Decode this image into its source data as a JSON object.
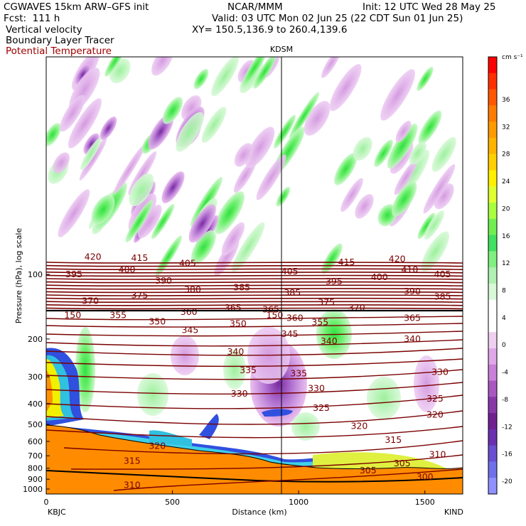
{
  "header": {
    "title": "CGWAVES 15km ARW–GFS init",
    "center": "NCAR/MMM",
    "init": "Init: 12 UTC Wed 28 May 25",
    "fcst": "Fcst:  111 h",
    "valid": "Valid: 03 UTC Mon 02 Jun 25 (22 CDT Sun 01 Jun 25)",
    "field1": "Vertical velocity",
    "field2": "Boundary Layer Tracer",
    "field3": "Potential Temperature",
    "xy": "XY= 150.5,136.9 to 260.4,139.6"
  },
  "colors": {
    "theta": "#7a0000",
    "terrain": "#ff8c00",
    "header_red": "#a00000"
  },
  "chart_data": {
    "type": "heatmap",
    "xlabel": "Distance (km)",
    "ylabel": "Pressure (hPa), log scale",
    "xlim": [
      0,
      1650
    ],
    "ylim": [
      1100,
      10
    ],
    "x_ticks": [
      0,
      500,
      1000,
      1500
    ],
    "y_ticks": [
      100,
      200,
      300,
      400,
      500,
      600,
      700,
      800,
      900,
      1000
    ],
    "x_end_labels": {
      "left": "KBJC",
      "right": "KIND"
    },
    "marker": {
      "label": "KDSM",
      "x": 935
    },
    "colorbar": {
      "unit": "cm s⁻¹",
      "labels": [
        36,
        32,
        28,
        24,
        20,
        16,
        12,
        8,
        4,
        0,
        -4,
        -8,
        -12,
        -16,
        -20
      ],
      "colors": [
        "#ff0000",
        "#ff3000",
        "#ff5800",
        "#ff7c00",
        "#ff9a00",
        "#ffb400",
        "#ffd000",
        "#fff000",
        "#e0ff30",
        "#a8ff40",
        "#70f050",
        "#40e060",
        "#80f080",
        "#b0f0b0",
        "#d8f8d8",
        "#ffffff",
        "#ffffff",
        "#f0d0f0",
        "#e0a8e8",
        "#c880d8",
        "#a858c0",
        "#8838a8",
        "#702090",
        "#6a30b0",
        "#6a50d0",
        "#7070e8",
        "#9090ff"
      ]
    },
    "theta_labels": [
      {
        "v": "420",
        "x": 185,
        "p": 83
      },
      {
        "v": "415",
        "x": 370,
        "p": 84
      },
      {
        "v": "405",
        "x": 560,
        "p": 89
      },
      {
        "v": "395",
        "x": 110,
        "p": 100
      },
      {
        "v": "400",
        "x": 320,
        "p": 95
      },
      {
        "v": "390",
        "x": 465,
        "p": 107
      },
      {
        "v": "380",
        "x": 580,
        "p": 118
      },
      {
        "v": "385",
        "x": 775,
        "p": 115
      },
      {
        "v": "375",
        "x": 370,
        "p": 125
      },
      {
        "v": "370",
        "x": 175,
        "p": 133
      },
      {
        "v": "365",
        "x": 740,
        "p": 143
      },
      {
        "v": "365",
        "x": 890,
        "p": 146
      },
      {
        "v": "360",
        "x": 565,
        "p": 150
      },
      {
        "v": "355",
        "x": 285,
        "p": 155
      },
      {
        "v": "350",
        "x": 440,
        "p": 166
      },
      {
        "v": "345",
        "x": 570,
        "p": 182
      },
      {
        "v": "350",
        "x": 760,
        "p": 170
      },
      {
        "v": "340",
        "x": 750,
        "p": 230
      },
      {
        "v": "335",
        "x": 800,
        "p": 280
      },
      {
        "v": "330",
        "x": 765,
        "p": 360
      },
      {
        "v": "325",
        "x": 1090,
        "p": 420
      },
      {
        "v": "320",
        "x": 1240,
        "p": 510
      },
      {
        "v": "315",
        "x": 1375,
        "p": 590
      },
      {
        "v": "310",
        "x": 1550,
        "p": 690
      },
      {
        "v": "315",
        "x": 340,
        "p": 740
      },
      {
        "v": "310",
        "x": 340,
        "p": 960
      },
      {
        "v": "320",
        "x": 440,
        "p": 630
      },
      {
        "v": "405",
        "x": 965,
        "p": 97
      },
      {
        "v": "415",
        "x": 1190,
        "p": 88
      },
      {
        "v": "420",
        "x": 1390,
        "p": 85
      },
      {
        "v": "410",
        "x": 1440,
        "p": 95
      },
      {
        "v": "405",
        "x": 1570,
        "p": 100
      },
      {
        "v": "395",
        "x": 1140,
        "p": 108
      },
      {
        "v": "400",
        "x": 1320,
        "p": 103
      },
      {
        "v": "385",
        "x": 975,
        "p": 122
      },
      {
        "v": "390",
        "x": 1450,
        "p": 120
      },
      {
        "v": "385",
        "x": 1570,
        "p": 127
      },
      {
        "v": "375",
        "x": 1110,
        "p": 135
      },
      {
        "v": "370",
        "x": 1230,
        "p": 143
      },
      {
        "v": "360",
        "x": 985,
        "p": 160
      },
      {
        "v": "355",
        "x": 1085,
        "p": 167
      },
      {
        "v": "365",
        "x": 1450,
        "p": 160
      },
      {
        "v": "345",
        "x": 965,
        "p": 190
      },
      {
        "v": "340",
        "x": 1120,
        "p": 205
      },
      {
        "v": "340",
        "x": 1450,
        "p": 200
      },
      {
        "v": "335",
        "x": 1000,
        "p": 290
      },
      {
        "v": "330",
        "x": 1070,
        "p": 340
      },
      {
        "v": "330",
        "x": 1560,
        "p": 285
      },
      {
        "v": "325",
        "x": 1540,
        "p": 380
      },
      {
        "v": "320",
        "x": 1540,
        "p": 450
      },
      {
        "v": "305",
        "x": 1410,
        "p": 760
      },
      {
        "v": "305",
        "x": 1275,
        "p": 820
      },
      {
        "v": "300",
        "x": 1500,
        "p": 880
      },
      {
        "v": "150",
        "x": 105,
        "p": 155
      },
      {
        "v": "150",
        "x": 905,
        "p": 155
      }
    ]
  }
}
